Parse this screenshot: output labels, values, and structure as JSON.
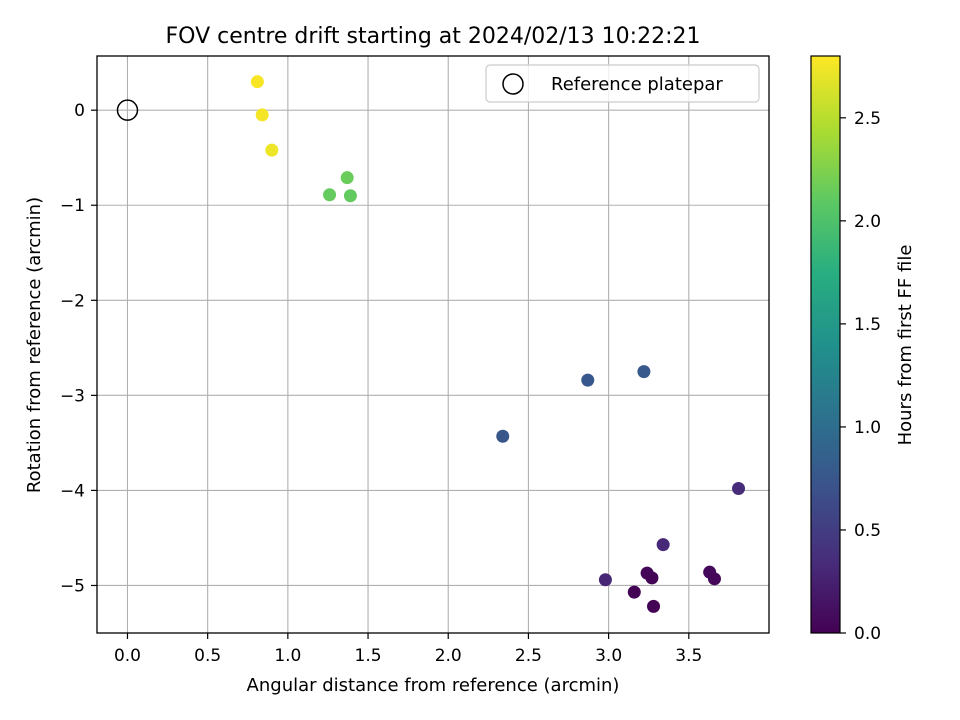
{
  "chart_data": {
    "type": "scatter",
    "title": "FOV centre drift starting at 2024/02/13 10:22:21",
    "xlabel": "Angular distance from reference (arcmin)",
    "ylabel": "Rotation from reference (arcmin)",
    "xlim": [
      -0.19,
      4.0
    ],
    "ylim": [
      -5.5,
      0.57
    ],
    "xticks": [
      0.0,
      0.5,
      1.0,
      1.5,
      2.0,
      2.5,
      3.0,
      3.5
    ],
    "xtick_labels": [
      "0.0",
      "0.5",
      "1.0",
      "1.5",
      "2.0",
      "2.5",
      "3.0",
      "3.5"
    ],
    "yticks": [
      0,
      -1,
      -2,
      -3,
      -4,
      -5
    ],
    "ytick_labels": [
      "0",
      "−1",
      "−2",
      "−3",
      "−4",
      "−5"
    ],
    "grid": true,
    "legend": {
      "position": "top-right",
      "entries": [
        {
          "label": "Reference platepar",
          "marker": "hollow-circle"
        }
      ]
    },
    "reference": {
      "x": 0.0,
      "y": 0.0
    },
    "series": [
      {
        "colormap": "viridis",
        "points": [
          {
            "x": 0.81,
            "y": 0.3,
            "hours": 2.78
          },
          {
            "x": 0.84,
            "y": -0.05,
            "hours": 2.76
          },
          {
            "x": 0.9,
            "y": -0.42,
            "hours": 2.74
          },
          {
            "x": 1.37,
            "y": -0.71,
            "hours": 2.15
          },
          {
            "x": 1.26,
            "y": -0.89,
            "hours": 2.13
          },
          {
            "x": 1.39,
            "y": -0.9,
            "hours": 2.12
          },
          {
            "x": 3.22,
            "y": -2.75,
            "hours": 0.78
          },
          {
            "x": 2.87,
            "y": -2.84,
            "hours": 0.76
          },
          {
            "x": 2.34,
            "y": -3.43,
            "hours": 0.74
          },
          {
            "x": 3.81,
            "y": -3.98,
            "hours": 0.34
          },
          {
            "x": 3.34,
            "y": -4.57,
            "hours": 0.32
          },
          {
            "x": 2.98,
            "y": -4.94,
            "hours": 0.3
          },
          {
            "x": 3.63,
            "y": -4.86,
            "hours": 0.06
          },
          {
            "x": 3.66,
            "y": -4.93,
            "hours": 0.05
          },
          {
            "x": 3.24,
            "y": -4.87,
            "hours": 0.04
          },
          {
            "x": 3.27,
            "y": -4.92,
            "hours": 0.03
          },
          {
            "x": 3.16,
            "y": -5.07,
            "hours": 0.02
          },
          {
            "x": 3.28,
            "y": -5.22,
            "hours": 0.01
          }
        ]
      }
    ],
    "colorbar": {
      "label": "Hours from first FF file",
      "range": [
        0.0,
        2.8
      ],
      "ticks": [
        0.0,
        0.5,
        1.0,
        1.5,
        2.0,
        2.5
      ],
      "tick_labels": [
        "0.0",
        "0.5",
        "1.0",
        "1.5",
        "2.0",
        "2.5"
      ]
    }
  }
}
